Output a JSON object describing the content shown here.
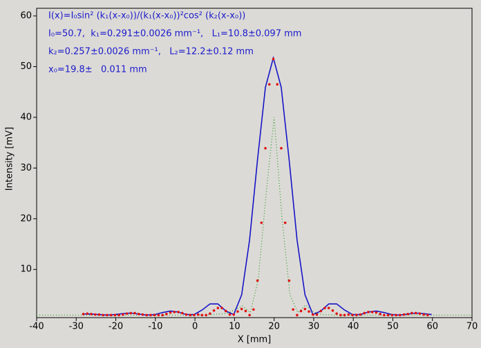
{
  "chart_data": {
    "type": "line",
    "annotations": [
      "I(x)=I₀sin² (k₁(x-x₀))/(k₁(x-x₀))²cos² (k₂(x-x₀))",
      "I₀=50.7,  k₁=0.291±0.0026 mm⁻¹,   L₁=10.8±0.097 mm",
      "k₂=0.257±0.0026 mm⁻¹,   L₂=12.2±0.12 mm",
      "x₀=19.8±   0.011 mm"
    ],
    "annotation_color": "#1a1acc",
    "x_label": "X [mm]",
    "y_label": "Intensity [mV]",
    "xlim": [
      -40,
      70
    ],
    "xticks": [
      -40,
      -30,
      -20,
      -10,
      0,
      10,
      20,
      30,
      40,
      50,
      60,
      70
    ],
    "ylim": [
      0.5,
      61.5
    ],
    "yticks": [
      10,
      20,
      30,
      40,
      50,
      60
    ],
    "series": [
      {
        "color": "#1a9a1a",
        "style": "dotted",
        "x": [
          -40,
          -36,
          -32,
          -28,
          -24,
          -20,
          -16,
          -12,
          -8,
          -4,
          0,
          4,
          8,
          10,
          12,
          14,
          16,
          18,
          20,
          22,
          24,
          26,
          28,
          30,
          32,
          36,
          40,
          44,
          48,
          52,
          56,
          60,
          64,
          68,
          70
        ],
        "values": [
          1.0,
          1.0,
          1.0,
          1.0,
          1.0,
          1.0,
          1.0,
          1.0,
          1.0,
          1.0,
          1.0,
          1.1,
          1.3,
          2.0,
          2.8,
          1.5,
          8,
          25,
          40,
          20,
          5,
          1.5,
          3.0,
          1.6,
          1.1,
          1.0,
          1.0,
          1.0,
          1.0,
          1.0,
          1.0,
          1.0,
          1.0,
          1.0,
          1.0
        ]
      },
      {
        "color": "#1414c8",
        "style": "line",
        "x": [
          -28.2,
          -26.2,
          -24.2,
          -22.2,
          -20.2,
          -18.2,
          -16.2,
          -14.2,
          -12.2,
          -10.2,
          -8.2,
          -6.2,
          -4.2,
          -2.2,
          -0.2,
          1.8,
          3.8,
          5.8,
          7.8,
          9.8,
          11.8,
          13.8,
          15.8,
          17.8,
          19.8,
          21.8,
          23.8,
          25.8,
          27.8,
          29.8,
          31.8,
          33.8,
          35.8,
          37.8,
          39.8,
          41.8,
          43.8,
          45.8,
          47.8,
          49.8,
          51.8,
          53.8,
          55.8,
          57.8,
          59.8
        ],
        "values": [
          1.2,
          1.2,
          1.1,
          1.0,
          1.1,
          1.3,
          1.4,
          1.2,
          1.0,
          1.1,
          1.5,
          1.8,
          1.6,
          1.1,
          1.1,
          2.0,
          3.2,
          3.2,
          1.8,
          1.1,
          5.0,
          15.8,
          31.6,
          45.9,
          51.7,
          45.9,
          31.6,
          15.8,
          5.0,
          1.1,
          1.8,
          3.2,
          3.2,
          2.0,
          1.1,
          1.1,
          1.6,
          1.8,
          1.5,
          1.1,
          1.0,
          1.2,
          1.4,
          1.3,
          1.1
        ]
      },
      {
        "color": "#e01010",
        "style": "dots",
        "x": [
          -28.2,
          -27.2,
          -26.2,
          -25.2,
          -24.2,
          -23.2,
          -22.2,
          -21.2,
          -20.2,
          -19.2,
          -18.2,
          -17.2,
          -16.2,
          -15.2,
          -14.2,
          -13.2,
          -12.2,
          -11.2,
          -10.2,
          -9.2,
          -8.2,
          -7.2,
          -6.2,
          -5.2,
          -4.2,
          -3.2,
          -2.2,
          -1.2,
          -0.2,
          0.8,
          1.8,
          2.8,
          3.8,
          4.8,
          5.8,
          6.8,
          7.8,
          8.8,
          9.8,
          10.8,
          11.8,
          12.8,
          13.8,
          14.8,
          15.8,
          16.8,
          17.8,
          18.8,
          19.8,
          20.8,
          21.8,
          22.8,
          23.8,
          24.8,
          25.8,
          26.8,
          27.8,
          28.8,
          29.8,
          30.8,
          31.8,
          32.8,
          33.8,
          34.8,
          35.8,
          36.8,
          37.8,
          38.8,
          39.8,
          40.8,
          41.8,
          42.8,
          43.8,
          44.8,
          45.8,
          46.8,
          47.8,
          48.8,
          49.8,
          50.8,
          51.8,
          52.8,
          53.8,
          54.8,
          55.8,
          56.8,
          57.8,
          58.8
        ],
        "values": [
          1.2,
          1.3,
          1.2,
          1.1,
          1.1,
          1.0,
          1.0,
          1.0,
          1.0,
          1.0,
          1.1,
          1.3,
          1.4,
          1.4,
          1.2,
          1.1,
          1.0,
          1.0,
          1.0,
          1.0,
          1.0,
          1.2,
          1.5,
          1.6,
          1.6,
          1.4,
          1.1,
          1.0,
          1.0,
          1.1,
          1.0,
          1.0,
          1.3,
          1.9,
          2.4,
          2.4,
          1.8,
          1.1,
          1.1,
          1.7,
          2.2,
          1.8,
          1.0,
          2.1,
          7.8,
          19.2,
          33.9,
          46.5,
          51.5,
          46.5,
          33.9,
          19.2,
          7.8,
          2.1,
          1.0,
          1.8,
          2.2,
          1.7,
          1.1,
          1.1,
          1.8,
          2.4,
          2.4,
          1.9,
          1.3,
          1.0,
          1.0,
          1.1,
          1.0,
          1.0,
          1.1,
          1.4,
          1.6,
          1.6,
          1.5,
          1.2,
          1.0,
          1.0,
          1.0,
          1.0,
          1.0,
          1.1,
          1.2,
          1.4,
          1.4,
          1.3,
          1.1,
          1.0
        ]
      }
    ]
  }
}
